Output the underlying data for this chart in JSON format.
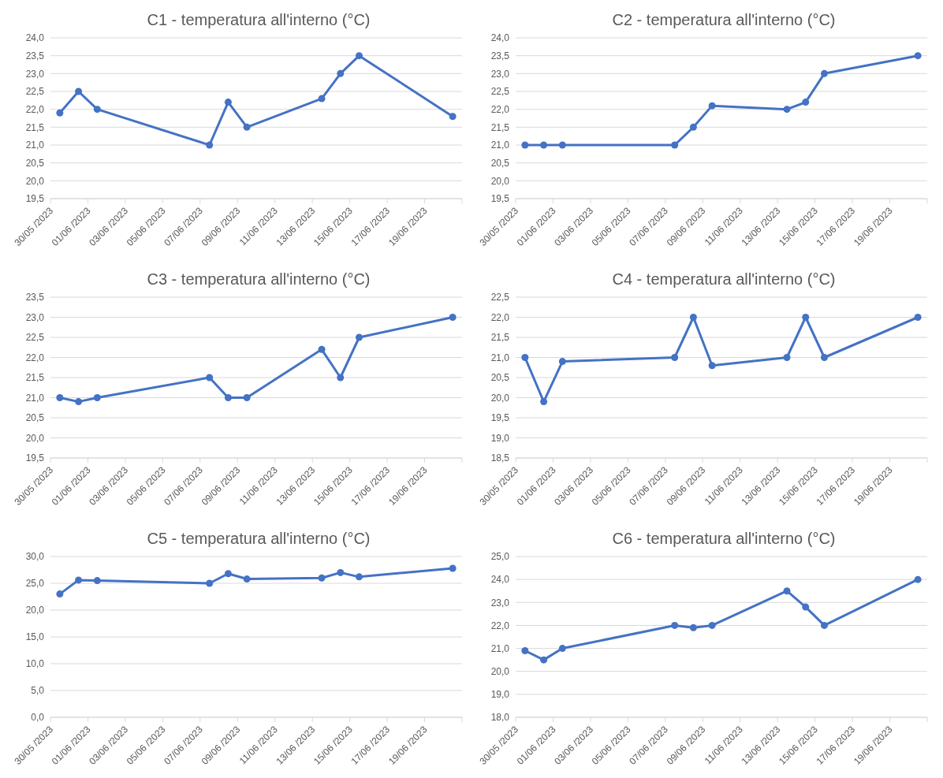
{
  "chart_data": [
    {
      "type": "line",
      "title": "C1 - temperatura all'interno (°C)",
      "color": "#4472c4",
      "marker": "circle",
      "line_style": "solid",
      "grid": "y",
      "x": [
        "2023-05-30T12:00",
        "2023-05-31T12:00",
        "2023-06-01T12:00",
        "2023-06-07T12:00",
        "2023-06-08T12:00",
        "2023-06-09T12:00",
        "2023-06-13T12:00",
        "2023-06-14T12:00",
        "2023-06-15T12:00",
        "2023-06-20T12:00"
      ],
      "values": [
        21.9,
        22.5,
        22.0,
        21.0,
        22.2,
        21.5,
        22.3,
        23.0,
        23.5,
        21.8
      ],
      "xlim": [
        "2023-05-30",
        "2023-06-21"
      ],
      "xticks": [
        {
          "value": "2023-05-30",
          "label": "30/05 /2023"
        },
        {
          "value": "2023-06-01",
          "label": "01/06 /2023"
        },
        {
          "value": "2023-06-03",
          "label": "03/06 /2023"
        },
        {
          "value": "2023-06-05",
          "label": "05/06 /2023"
        },
        {
          "value": "2023-06-07",
          "label": "07/06 /2023"
        },
        {
          "value": "2023-06-09",
          "label": "09/06 /2023"
        },
        {
          "value": "2023-06-11",
          "label": "11/06 /2023"
        },
        {
          "value": "2023-06-13",
          "label": "13/06 /2023"
        },
        {
          "value": "2023-06-15",
          "label": "15/06 /2023"
        },
        {
          "value": "2023-06-17",
          "label": "17/06 /2023"
        },
        {
          "value": "2023-06-19",
          "label": "19/06 /2023"
        },
        {
          "value": "2023-06-21",
          "label": null
        }
      ],
      "ylim": [
        19.5,
        24
      ],
      "yticks": [
        {
          "value": 19.5,
          "label": "19,5"
        },
        {
          "value": 20,
          "label": "20,0"
        },
        {
          "value": 20.5,
          "label": "20,5"
        },
        {
          "value": 21,
          "label": "21,0"
        },
        {
          "value": 21.5,
          "label": "21,5"
        },
        {
          "value": 22,
          "label": "22,0"
        },
        {
          "value": 22.5,
          "label": "22,5"
        },
        {
          "value": 23,
          "label": "23,0"
        },
        {
          "value": 23.5,
          "label": "23,5"
        },
        {
          "value": 24,
          "label": "24,0"
        }
      ]
    },
    {
      "type": "line",
      "title": "C2 - temperatura all'interno (°C)",
      "color": "#4472c4",
      "marker": "circle",
      "line_style": "solid",
      "grid": "y",
      "x": [
        "2023-05-30T12:00",
        "2023-05-31T12:00",
        "2023-06-01T12:00",
        "2023-06-07T12:00",
        "2023-06-08T12:00",
        "2023-06-09T12:00",
        "2023-06-13T12:00",
        "2023-06-14T12:00",
        "2023-06-15T12:00",
        "2023-06-20T12:00"
      ],
      "values": [
        21.0,
        21.0,
        21.0,
        21.0,
        21.5,
        22.1,
        22.0,
        22.2,
        23.0,
        23.5
      ],
      "xlim": [
        "2023-05-30",
        "2023-06-21"
      ],
      "xticks": [
        {
          "value": "2023-05-30",
          "label": "30/05 /2023"
        },
        {
          "value": "2023-06-01",
          "label": "01/06 /2023"
        },
        {
          "value": "2023-06-03",
          "label": "03/06 /2023"
        },
        {
          "value": "2023-06-05",
          "label": "05/06 /2023"
        },
        {
          "value": "2023-06-07",
          "label": "07/06 /2023"
        },
        {
          "value": "2023-06-09",
          "label": "09/06 /2023"
        },
        {
          "value": "2023-06-11",
          "label": "11/06 /2023"
        },
        {
          "value": "2023-06-13",
          "label": "13/06 /2023"
        },
        {
          "value": "2023-06-15",
          "label": "15/06 /2023"
        },
        {
          "value": "2023-06-17",
          "label": "17/06 /2023"
        },
        {
          "value": "2023-06-19",
          "label": "19/06 /2023"
        },
        {
          "value": "2023-06-21",
          "label": null
        }
      ],
      "ylim": [
        19.5,
        24
      ],
      "yticks": [
        {
          "value": 19.5,
          "label": "19,5"
        },
        {
          "value": 20,
          "label": "20,0"
        },
        {
          "value": 20.5,
          "label": "20,5"
        },
        {
          "value": 21,
          "label": "21,0"
        },
        {
          "value": 21.5,
          "label": "21,5"
        },
        {
          "value": 22,
          "label": "22,0"
        },
        {
          "value": 22.5,
          "label": "22,5"
        },
        {
          "value": 23,
          "label": "23,0"
        },
        {
          "value": 23.5,
          "label": "23,5"
        },
        {
          "value": 24,
          "label": "24,0"
        }
      ]
    },
    {
      "type": "line",
      "title": "C3 - temperatura all'interno (°C)",
      "color": "#4472c4",
      "marker": "circle",
      "line_style": "solid",
      "grid": "y",
      "x": [
        "2023-05-30T12:00",
        "2023-05-31T12:00",
        "2023-06-01T12:00",
        "2023-06-07T12:00",
        "2023-06-08T12:00",
        "2023-06-09T12:00",
        "2023-06-13T12:00",
        "2023-06-14T12:00",
        "2023-06-15T12:00",
        "2023-06-20T12:00"
      ],
      "values": [
        21.0,
        20.9,
        21.0,
        21.5,
        21.0,
        21.0,
        22.2,
        21.5,
        22.5,
        23.0
      ],
      "xlim": [
        "2023-05-30",
        "2023-06-21"
      ],
      "xticks": [
        {
          "value": "2023-05-30",
          "label": "30/05 /2023"
        },
        {
          "value": "2023-06-01",
          "label": "01/06 /2023"
        },
        {
          "value": "2023-06-03",
          "label": "03/06 /2023"
        },
        {
          "value": "2023-06-05",
          "label": "05/06 /2023"
        },
        {
          "value": "2023-06-07",
          "label": "07/06 /2023"
        },
        {
          "value": "2023-06-09",
          "label": "09/06 /2023"
        },
        {
          "value": "2023-06-11",
          "label": "11/06 /2023"
        },
        {
          "value": "2023-06-13",
          "label": "13/06 /2023"
        },
        {
          "value": "2023-06-15",
          "label": "15/06 /2023"
        },
        {
          "value": "2023-06-17",
          "label": "17/06 /2023"
        },
        {
          "value": "2023-06-19",
          "label": "19/06 /2023"
        },
        {
          "value": "2023-06-21",
          "label": null
        }
      ],
      "ylim": [
        19.5,
        23.5
      ],
      "yticks": [
        {
          "value": 19.5,
          "label": "19,5"
        },
        {
          "value": 20,
          "label": "20,0"
        },
        {
          "value": 20.5,
          "label": "20,5"
        },
        {
          "value": 21,
          "label": "21,0"
        },
        {
          "value": 21.5,
          "label": "21,5"
        },
        {
          "value": 22,
          "label": "22,0"
        },
        {
          "value": 22.5,
          "label": "22,5"
        },
        {
          "value": 23,
          "label": "23,0"
        },
        {
          "value": 23.5,
          "label": "23,5"
        }
      ]
    },
    {
      "type": "line",
      "title": "C4 - temperatura all'interno (°C)",
      "color": "#4472c4",
      "marker": "circle",
      "line_style": "solid",
      "grid": "y",
      "x": [
        "2023-05-30T12:00",
        "2023-05-31T12:00",
        "2023-06-01T12:00",
        "2023-06-07T12:00",
        "2023-06-08T12:00",
        "2023-06-09T12:00",
        "2023-06-13T12:00",
        "2023-06-14T12:00",
        "2023-06-15T12:00",
        "2023-06-20T12:00"
      ],
      "values": [
        21.0,
        19.9,
        20.9,
        21.0,
        22.0,
        20.8,
        21.0,
        22.0,
        21.0,
        22.0
      ],
      "xlim": [
        "2023-05-30",
        "2023-06-21"
      ],
      "xticks": [
        {
          "value": "2023-05-30",
          "label": "30/05 /2023"
        },
        {
          "value": "2023-06-01",
          "label": "01/06 /2023"
        },
        {
          "value": "2023-06-03",
          "label": "03/06 /2023"
        },
        {
          "value": "2023-06-05",
          "label": "05/06 /2023"
        },
        {
          "value": "2023-06-07",
          "label": "07/06 /2023"
        },
        {
          "value": "2023-06-09",
          "label": "09/06 /2023"
        },
        {
          "value": "2023-06-11",
          "label": "11/06 /2023"
        },
        {
          "value": "2023-06-13",
          "label": "13/06 /2023"
        },
        {
          "value": "2023-06-15",
          "label": "15/06 /2023"
        },
        {
          "value": "2023-06-17",
          "label": "17/06 /2023"
        },
        {
          "value": "2023-06-19",
          "label": "19/06 /2023"
        },
        {
          "value": "2023-06-21",
          "label": null
        }
      ],
      "ylim": [
        18.5,
        22.5
      ],
      "yticks": [
        {
          "value": 18.5,
          "label": "18,5"
        },
        {
          "value": 19,
          "label": "19,0"
        },
        {
          "value": 19.5,
          "label": "19,5"
        },
        {
          "value": 20,
          "label": "20,0"
        },
        {
          "value": 20.5,
          "label": "20,5"
        },
        {
          "value": 21,
          "label": "21,0"
        },
        {
          "value": 21.5,
          "label": "21,5"
        },
        {
          "value": 22,
          "label": "22,0"
        },
        {
          "value": 22.5,
          "label": "22,5"
        }
      ]
    },
    {
      "type": "line",
      "title": "C5 - temperatura all'interno (°C)",
      "color": "#4472c4",
      "marker": "circle",
      "line_style": "solid",
      "grid": "y",
      "x": [
        "2023-05-30T12:00",
        "2023-05-31T12:00",
        "2023-06-01T12:00",
        "2023-06-07T12:00",
        "2023-06-08T12:00",
        "2023-06-09T12:00",
        "2023-06-13T12:00",
        "2023-06-14T12:00",
        "2023-06-15T12:00",
        "2023-06-20T12:00"
      ],
      "values": [
        23.0,
        25.6,
        25.5,
        25.0,
        26.8,
        25.8,
        26.0,
        27.0,
        26.2,
        27.8
      ],
      "xlim": [
        "2023-05-30",
        "2023-06-21"
      ],
      "xticks": [
        {
          "value": "2023-05-30",
          "label": "30/05 /2023"
        },
        {
          "value": "2023-06-01",
          "label": "01/06 /2023"
        },
        {
          "value": "2023-06-03",
          "label": "03/06 /2023"
        },
        {
          "value": "2023-06-05",
          "label": "05/06 /2023"
        },
        {
          "value": "2023-06-07",
          "label": "07/06 /2023"
        },
        {
          "value": "2023-06-09",
          "label": "09/06 /2023"
        },
        {
          "value": "2023-06-11",
          "label": "11/06 /2023"
        },
        {
          "value": "2023-06-13",
          "label": "13/06 /2023"
        },
        {
          "value": "2023-06-15",
          "label": "15/06 /2023"
        },
        {
          "value": "2023-06-17",
          "label": "17/06 /2023"
        },
        {
          "value": "2023-06-19",
          "label": "19/06 /2023"
        },
        {
          "value": "2023-06-21",
          "label": null
        }
      ],
      "ylim": [
        0,
        30
      ],
      "yticks": [
        {
          "value": 0,
          "label": "0,0"
        },
        {
          "value": 5,
          "label": "5,0"
        },
        {
          "value": 10,
          "label": "10,0"
        },
        {
          "value": 15,
          "label": "15,0"
        },
        {
          "value": 20,
          "label": "20,0"
        },
        {
          "value": 25,
          "label": "25,0"
        },
        {
          "value": 30,
          "label": "30,0"
        }
      ]
    },
    {
      "type": "line",
      "title": "C6 - temperatura all'interno (°C)",
      "color": "#4472c4",
      "marker": "circle",
      "line_style": "solid",
      "grid": "y",
      "x": [
        "2023-05-30T12:00",
        "2023-05-31T12:00",
        "2023-06-01T12:00",
        "2023-06-07T12:00",
        "2023-06-08T12:00",
        "2023-06-09T12:00",
        "2023-06-13T12:00",
        "2023-06-14T12:00",
        "2023-06-15T12:00",
        "2023-06-20T12:00"
      ],
      "values": [
        20.9,
        20.5,
        21.0,
        22.0,
        21.9,
        22.0,
        23.5,
        22.8,
        22.0,
        24.0
      ],
      "xlim": [
        "2023-05-30",
        "2023-06-21"
      ],
      "xticks": [
        {
          "value": "2023-05-30",
          "label": "30/05 /2023"
        },
        {
          "value": "2023-06-01",
          "label": "01/06 /2023"
        },
        {
          "value": "2023-06-03",
          "label": "03/06 /2023"
        },
        {
          "value": "2023-06-05",
          "label": "05/06 /2023"
        },
        {
          "value": "2023-06-07",
          "label": "07/06 /2023"
        },
        {
          "value": "2023-06-09",
          "label": "09/06 /2023"
        },
        {
          "value": "2023-06-11",
          "label": "11/06 /2023"
        },
        {
          "value": "2023-06-13",
          "label": "13/06 /2023"
        },
        {
          "value": "2023-06-15",
          "label": "15/06 /2023"
        },
        {
          "value": "2023-06-17",
          "label": "17/06 /2023"
        },
        {
          "value": "2023-06-19",
          "label": "19/06 /2023"
        },
        {
          "value": "2023-06-21",
          "label": null
        }
      ],
      "ylim": [
        18,
        25
      ],
      "yticks": [
        {
          "value": 18,
          "label": "18,0"
        },
        {
          "value": 19,
          "label": "19,0"
        },
        {
          "value": 20,
          "label": "20,0"
        },
        {
          "value": 21,
          "label": "21,0"
        },
        {
          "value": 22,
          "label": "22,0"
        },
        {
          "value": 23,
          "label": "23,0"
        },
        {
          "value": 24,
          "label": "24,0"
        },
        {
          "value": 25,
          "label": "25,0"
        }
      ]
    }
  ]
}
